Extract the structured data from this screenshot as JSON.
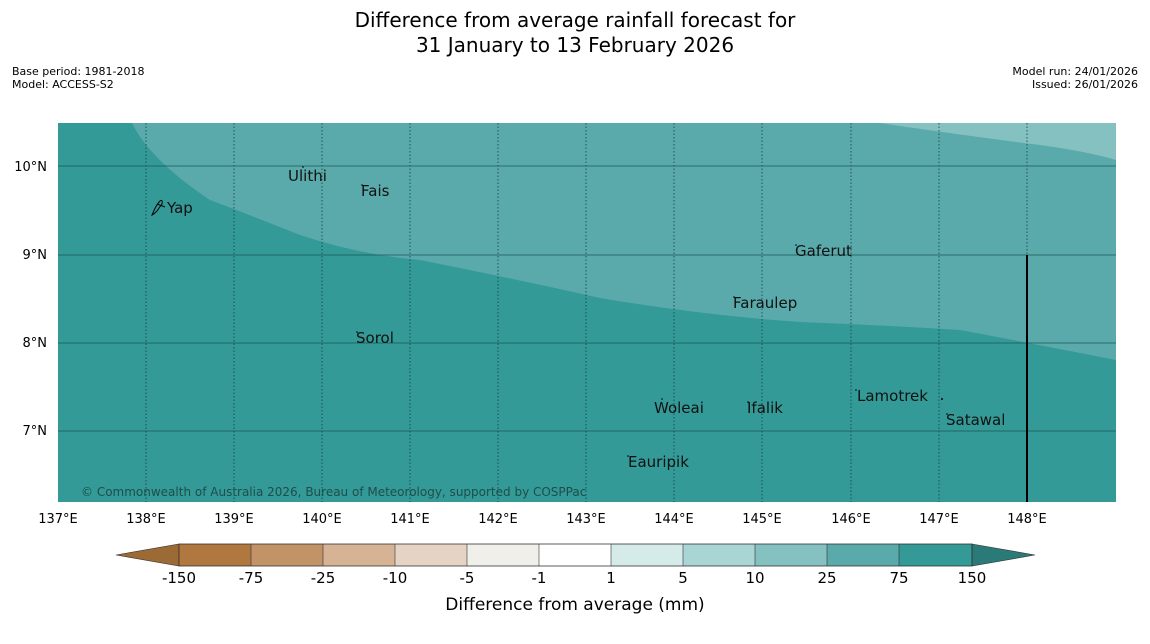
{
  "title": {
    "line1": "Difference from average rainfall forecast for",
    "line2": "31 January to 13 February 2026"
  },
  "meta_left": {
    "base_period": "Base period: 1981-2018",
    "model": "Model: ACCESS-S2"
  },
  "meta_right": {
    "model_run": "Model run: 24/01/2026",
    "issued": "Issued: 26/01/2026"
  },
  "map": {
    "longitude_labels": [
      "137°E",
      "138°E",
      "139°E",
      "140°E",
      "141°E",
      "142°E",
      "143°E",
      "144°E",
      "145°E",
      "146°E",
      "147°E",
      "148°E"
    ],
    "latitude_labels": [
      "10°N",
      "9°N",
      "8°N",
      "7°N"
    ],
    "islands": [
      "Ulithi",
      "Fais",
      "Yap",
      "Gaferut",
      "Faraulep",
      "Sorol",
      "Lamotrek",
      "Woleai",
      "Ifalik",
      "Satawal",
      "Eauripik"
    ],
    "copyright": "© Commonwealth of Australia 2026, Bureau of Meteorology, supported by COSPPac",
    "colors": {
      "band_75_150": "#339a97",
      "band_25_75": "#5aaaab",
      "band_10_25": "#85c1c0"
    }
  },
  "colorbar": {
    "ticks": [
      "-150",
      "-75",
      "-25",
      "-10",
      "-5",
      "-1",
      "1",
      "5",
      "10",
      "25",
      "75",
      "150"
    ],
    "colors": [
      "#9c6a34",
      "#b0773f",
      "#c29367",
      "#d5b394",
      "#e5d3c3",
      "#f1efea",
      "#ffffff",
      "#d5ebea",
      "#a9d6d5",
      "#85c1c0",
      "#5aaaab",
      "#339a97",
      "#2a7a78"
    ],
    "title": "Difference from average (mm)"
  }
}
